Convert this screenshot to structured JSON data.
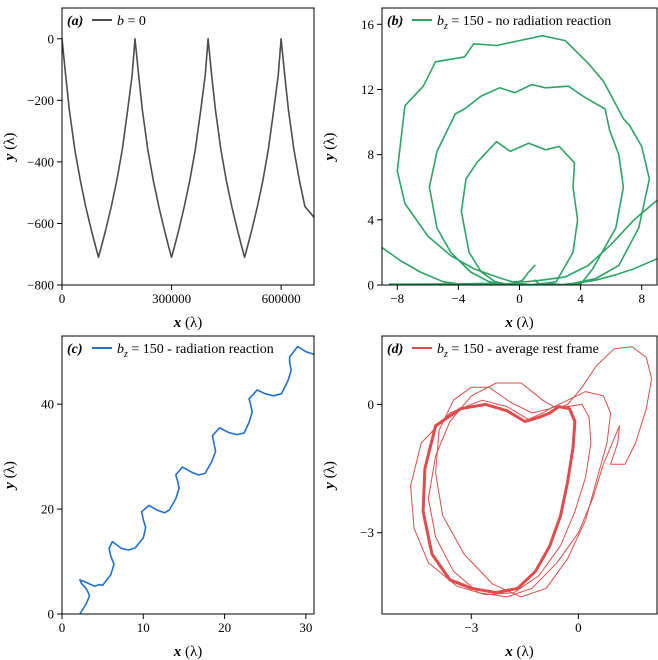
{
  "chart_data": [
    {
      "type": "line",
      "panel": "(a)",
      "legend": "b = 0",
      "legend_parts": {
        "var": "b",
        "rest": " = 0"
      },
      "color": "#4d4d4d",
      "xlabel": {
        "var": "x",
        "unit": " (λ)"
      },
      "ylabel": {
        "var": "y",
        "unit": " (λ)"
      },
      "xlim": [
        0,
        690000
      ],
      "ylim": [
        -800,
        100
      ],
      "xticks": [
        0,
        300000,
        600000
      ],
      "xtick_labels": [
        "0",
        "300000",
        "600000"
      ],
      "yticks": [
        -800,
        -600,
        -400,
        -200,
        0
      ],
      "ytick_labels": [
        "-800",
        "-600",
        "-400",
        "-200",
        "0"
      ],
      "series": [
        {
          "x": [
            0,
            10000,
            20000,
            35000,
            50000,
            65000,
            80000,
            92000,
            100000,
            108000,
            120000,
            135000,
            150000,
            165000,
            180000,
            192000,
            200000,
            210000,
            220000,
            235000,
            250000,
            265000,
            280000,
            292000,
            300000,
            308000,
            320000,
            335000,
            350000,
            365000,
            380000,
            392000,
            400000,
            410000,
            420000,
            435000,
            450000,
            465000,
            480000,
            492000,
            500000,
            508000,
            520000,
            535000,
            550000,
            565000,
            580000,
            592000,
            600000,
            610000,
            620000,
            635000,
            650000,
            665000,
            690000
          ],
          "y": [
            0,
            -120,
            -230,
            -360,
            -460,
            -545,
            -620,
            -675,
            -710,
            -675,
            -620,
            -545,
            -460,
            -360,
            -230,
            -120,
            0,
            -120,
            -230,
            -360,
            -460,
            -545,
            -620,
            -675,
            -710,
            -675,
            -620,
            -545,
            -460,
            -360,
            -230,
            -120,
            0,
            -120,
            -230,
            -360,
            -460,
            -545,
            -620,
            -675,
            -710,
            -675,
            -620,
            -545,
            -460,
            -360,
            -230,
            -120,
            0,
            -120,
            -230,
            -360,
            -460,
            -545,
            -580
          ]
        }
      ]
    },
    {
      "type": "line",
      "panel": "(b)",
      "legend": "b_z = 150 - no radiation reaction",
      "legend_parts": {
        "var": "b",
        "sub": "z",
        "rest": " = 150 - no radiation reaction"
      },
      "color": "#2ca464",
      "xlabel": {
        "var": "x",
        "unit": " (λ)"
      },
      "ylabel": {
        "var": "y",
        "unit": " (λ)"
      },
      "xlim": [
        -9,
        9
      ],
      "ylim": [
        0,
        17
      ],
      "xticks": [
        -8,
        -4,
        0,
        4,
        8
      ],
      "xtick_labels": [
        "-8",
        "-4",
        "0",
        "4",
        "8"
      ],
      "yticks": [
        0,
        4,
        8,
        12,
        16
      ],
      "ytick_labels": [
        "0",
        "4",
        "8",
        "12",
        "16"
      ],
      "series": [
        {
          "x": [
            1.0,
            1.3,
            2.4,
            3.5,
            3.8,
            3.5,
            3.6,
            2.6,
            1.7,
            0.6,
            -0.6,
            -1.5,
            -2.8,
            -3.5,
            -3.8,
            -3.3,
            -2.5,
            -1.6,
            -0.6,
            0.2,
            0.6,
            1.0
          ],
          "y": [
            0.3,
            0.05,
            0.2,
            2.0,
            4.0,
            6.0,
            7.5,
            8.5,
            8.3,
            8.7,
            8.2,
            8.8,
            7.5,
            6.5,
            4.5,
            2.0,
            0.8,
            0.2,
            0.0,
            0.3,
            0.8,
            1.2
          ]
        },
        {
          "x": [
            -8.5,
            -6.5,
            -4.5,
            -3.2,
            -2.0,
            -1.0,
            0.0,
            1.0,
            2.0,
            3.0,
            4.0,
            4.8,
            6.3,
            6.8,
            6.5,
            5.9,
            5.6,
            4.3,
            3.2,
            1.7,
            0.8,
            -0.3,
            -1.3,
            -2.5,
            -3.6,
            -4.2,
            -5.4,
            -5.9,
            -5.4,
            -4.5,
            -3.2,
            -2.0,
            -0.8,
            0.5,
            1.7,
            2.9,
            4.0,
            5.0,
            6.2,
            7.5,
            9.0
          ],
          "y": [
            0.05,
            0.06,
            0.07,
            0.08,
            0.1,
            0.0,
            0.1,
            0.0,
            0.1,
            0.0,
            0.05,
            1.0,
            3.5,
            6.0,
            8.0,
            9.5,
            10.8,
            11.5,
            12.2,
            12.1,
            12.3,
            11.8,
            12.1,
            11.6,
            10.8,
            10.5,
            8.2,
            6.0,
            3.5,
            2.0,
            0.8,
            0.2,
            0.0,
            0.0,
            0.0,
            0.0,
            0.15,
            0.3,
            0.6,
            1.0,
            1.6
          ]
        },
        {
          "x": [
            -9.0,
            -7.8,
            -6.5,
            -5.0,
            -3.5,
            -2.5,
            -1.5,
            -0.5,
            0.5,
            1.5,
            2.5,
            3.5,
            5.0,
            6.5,
            7.8,
            8.5,
            8.0,
            7.2,
            6.8,
            5.5,
            4.5,
            3.0,
            1.5,
            0.0,
            -1.5,
            -3.0,
            -3.6,
            -5.5,
            -6.3,
            -7.5,
            -8.0,
            -7.5,
            -6.0,
            -4.5,
            -3.0,
            -1.5,
            -0.5,
            0.5,
            1.5,
            3.0,
            4.5,
            6.0,
            7.5,
            9.0
          ],
          "y": [
            2.3,
            1.5,
            0.8,
            0.2,
            0.0,
            0.1,
            0.0,
            0.1,
            0.0,
            0.1,
            0.0,
            0.1,
            0.4,
            1.2,
            3.5,
            6.5,
            8.5,
            9.8,
            10.2,
            12.5,
            13.6,
            15.0,
            15.3,
            15.0,
            14.7,
            14.8,
            14.0,
            13.7,
            12.2,
            11.0,
            7.0,
            5.0,
            3.0,
            1.8,
            1.0,
            0.5,
            0.2,
            0.2,
            0.3,
            0.5,
            1.2,
            2.5,
            4.0,
            5.2
          ]
        }
      ]
    },
    {
      "type": "line",
      "panel": "(c)",
      "legend": "b_z = 150 - radiation reaction",
      "legend_parts": {
        "var": "b",
        "sub": "z",
        "rest": " = 150 - radiation reaction"
      },
      "color": "#1f6fd1",
      "xlabel": {
        "var": "x",
        "unit": " (λ)"
      },
      "ylabel": {
        "var": "y",
        "unit": " (λ)"
      },
      "xlim": [
        0,
        31
      ],
      "ylim": [
        0,
        53
      ],
      "xticks": [
        0,
        10,
        20,
        30
      ],
      "xtick_labels": [
        "0",
        "10",
        "20",
        "30"
      ],
      "yticks": [
        0,
        20,
        40
      ],
      "ytick_labels": [
        "0",
        "20",
        "40"
      ],
      "series": [
        {
          "x": [
            2.2,
            3.0,
            3.4,
            3.0,
            2.4,
            2.2,
            3.0,
            4.0,
            4.6,
            5.0,
            6.0,
            6.4,
            6.0,
            5.8,
            6.2,
            7.3,
            8.2,
            9.0,
            10.0,
            10.3,
            10.0,
            9.8,
            10.7,
            11.7,
            12.6,
            13.2,
            14.0,
            14.4,
            14.2,
            14.0,
            14.8,
            16.0,
            16.8,
            17.6,
            18.4,
            18.9,
            18.7,
            18.5,
            19.4,
            20.5,
            21.5,
            22.4,
            23.0,
            23.4,
            23.2,
            23.0,
            24.0,
            25.0,
            26.0,
            27.0,
            27.8,
            28.2,
            28.0,
            28.0,
            29.0,
            30.0,
            31.0
          ],
          "y": [
            0.0,
            2.0,
            3.5,
            4.8,
            5.8,
            6.5,
            6.0,
            5.3,
            5.6,
            5.5,
            7.5,
            9.5,
            11.0,
            12.5,
            13.8,
            12.5,
            12.2,
            12.6,
            14.5,
            16.5,
            18.0,
            19.5,
            20.7,
            19.8,
            19.3,
            19.8,
            22.0,
            24.0,
            25.5,
            26.5,
            28.0,
            27.0,
            26.5,
            26.8,
            29.0,
            31.0,
            32.5,
            34.0,
            35.5,
            34.6,
            34.2,
            34.5,
            36.5,
            38.5,
            40.0,
            41.0,
            42.7,
            42.0,
            41.6,
            42.0,
            44.5,
            46.5,
            48.0,
            49.0,
            51.0,
            50.0,
            49.5
          ]
        }
      ]
    },
    {
      "type": "line",
      "panel": "(d)",
      "legend": "b_z = 150 - average rest frame",
      "legend_parts": {
        "var": "b",
        "sub": "z",
        "rest": " = 150 - average rest frame"
      },
      "color": "#e04b4b",
      "xlabel": {
        "var": "x",
        "unit": " (λ)"
      },
      "ylabel": {
        "var": "y",
        "unit": " (λ)"
      },
      "xlim": [
        -5.5,
        2.2
      ],
      "ylim": [
        -4.9,
        1.6
      ],
      "xticks": [
        -3,
        0
      ],
      "xtick_labels": [
        "-3",
        "0"
      ],
      "yticks": [
        -3,
        0
      ],
      "ytick_labels": [
        "-3",
        "0"
      ],
      "series": [
        {
          "name": "",
          "x": [
            -1.1,
            -1.5,
            -2.0,
            -2.6,
            -3.3,
            -4.0,
            -4.3,
            -4.35,
            -4.1,
            -3.6,
            -3.0,
            -2.3,
            -1.7,
            -1.2,
            -0.8,
            -0.5,
            -0.3,
            -0.15,
            -0.1,
            -0.25,
            -0.55,
            -0.8,
            -1.1
          ],
          "y": [
            -0.3,
            -0.4,
            -0.15,
            0.0,
            -0.1,
            -0.5,
            -1.5,
            -2.5,
            -3.5,
            -4.1,
            -4.3,
            -4.4,
            -4.3,
            -3.9,
            -3.3,
            -2.6,
            -1.8,
            -1.0,
            -0.4,
            -0.1,
            -0.05,
            -0.2,
            -0.3
          ]
        },
        {
          "x": [
            -1.0,
            -1.4,
            -2.0,
            -2.7,
            -3.6,
            -4.4,
            -4.7,
            -4.6,
            -4.2,
            -3.4,
            -2.6,
            -1.8,
            -1.1,
            -0.5,
            -0.1,
            0.2,
            0.35,
            0.3,
            0.1,
            -0.3,
            -0.7,
            -1.0
          ],
          "y": [
            -0.2,
            -0.35,
            -0.05,
            0.1,
            -0.2,
            -0.9,
            -1.9,
            -2.9,
            -3.7,
            -4.25,
            -4.45,
            -4.4,
            -4.0,
            -3.3,
            -2.5,
            -1.7,
            -0.9,
            -0.3,
            0.0,
            -0.05,
            -0.05,
            -0.2
          ]
        },
        {
          "x": [
            -0.8,
            -1.3,
            -1.9,
            -2.5,
            -3.0,
            -3.5,
            -3.9,
            -4.0,
            -3.8,
            -3.2,
            -2.4,
            -1.6,
            -0.9,
            -0.3,
            0.2,
            0.5,
            0.8,
            0.9,
            0.7,
            0.2,
            -0.3,
            -0.8
          ],
          "y": [
            -0.1,
            -0.2,
            0.05,
            0.4,
            0.4,
            0.1,
            -0.6,
            -1.6,
            -2.6,
            -3.5,
            -4.2,
            -4.5,
            -4.3,
            -3.6,
            -2.7,
            -1.8,
            -0.9,
            -0.2,
            0.2,
            0.3,
            0.1,
            -0.1
          ]
        },
        {
          "x": [
            -0.6,
            -1.0,
            -1.6,
            -2.3,
            -3.0,
            -3.6,
            -4.0,
            -4.2,
            -4.0,
            -3.5,
            -2.8,
            -2.0,
            -1.3,
            -0.6,
            0.0,
            0.4,
            0.7,
            1.0,
            1.15,
            1.1,
            0.9,
            1.3,
            1.6,
            1.9,
            2.05,
            1.9,
            1.5,
            1.0,
            0.5,
            0.1,
            -0.3,
            -0.6
          ],
          "y": [
            -0.1,
            0.1,
            0.5,
            0.5,
            0.2,
            -0.4,
            -1.2,
            -2.2,
            -3.1,
            -3.9,
            -4.4,
            -4.5,
            -4.3,
            -3.7,
            -3.0,
            -2.2,
            -1.4,
            -0.8,
            -0.5,
            -0.9,
            -1.4,
            -1.4,
            -0.9,
            -0.1,
            0.6,
            1.1,
            1.35,
            1.3,
            0.9,
            0.4,
            0.0,
            -0.1
          ]
        }
      ]
    }
  ]
}
